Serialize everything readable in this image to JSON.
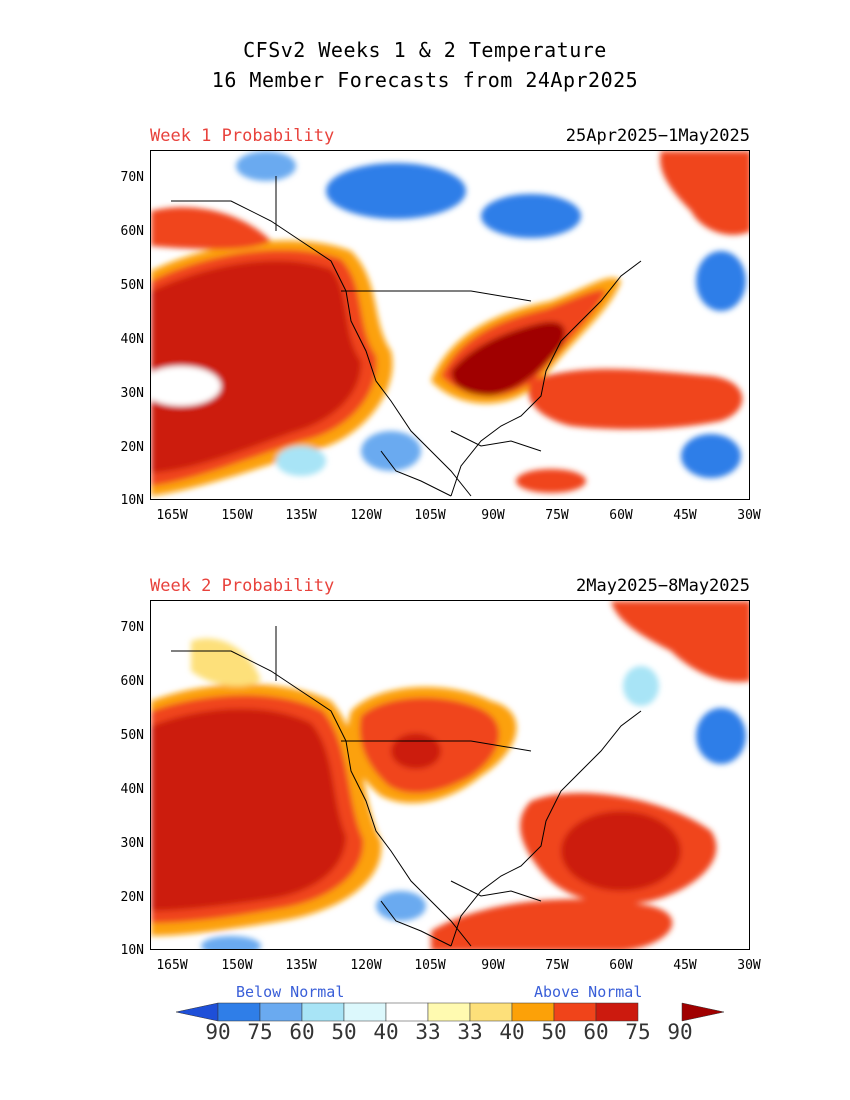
{
  "title_line1": "CFSv2 Weeks 1 & 2 Temperature",
  "title_line2": "16 Member Forecasts from 24Apr2025",
  "panels": [
    {
      "label": "Week 1 Probability",
      "dates": "25Apr2025−1May2025"
    },
    {
      "label": "Week 2 Probability",
      "dates": "2May2025−8May2025"
    }
  ],
  "lat_ticks": [
    "70N",
    "60N",
    "50N",
    "40N",
    "30N",
    "20N",
    "10N"
  ],
  "lon_ticks": [
    "165W",
    "150W",
    "135W",
    "120W",
    "105W",
    "90W",
    "75W",
    "60W",
    "45W",
    "30W"
  ],
  "legend": {
    "below_label": "Below Normal",
    "above_label": "Above Normal",
    "numbers": [
      "90",
      "75",
      "60",
      "50",
      "40",
      "33",
      "33",
      "40",
      "50",
      "60",
      "75",
      "90"
    ],
    "colors": [
      "#1e4fd8",
      "#2f7ee8",
      "#6aaaf0",
      "#a8e4f6",
      "#dcf8fc",
      "#ffffff",
      "#fffab0",
      "#fde07a",
      "#fca108",
      "#f0441a",
      "#cc1a0e",
      "#a00000"
    ]
  },
  "colors": {
    "week_label": "#e8423c",
    "legend_text": "#3a5fd8",
    "above_strong": "#a00000",
    "above_mid": "#cc1a0e",
    "below_mid": "#2f7ee8"
  }
}
